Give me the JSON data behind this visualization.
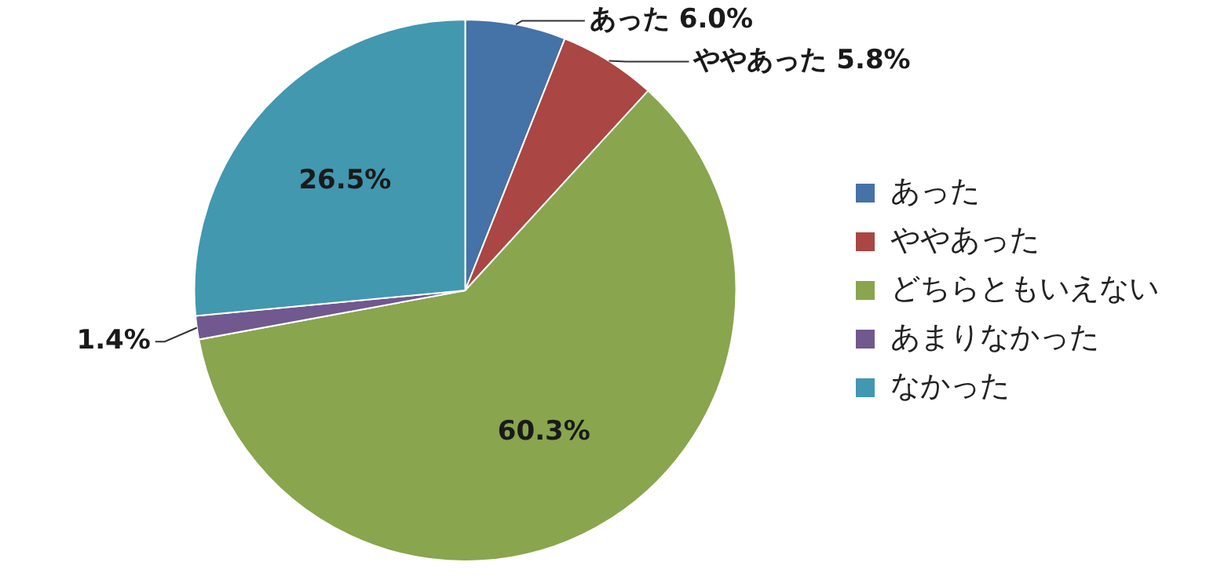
{
  "chart_data": {
    "type": "pie",
    "categories": [
      "あった",
      "ややあった",
      "どちらともいえない",
      "あまりなかった",
      "なかった"
    ],
    "values": [
      6.0,
      5.8,
      60.3,
      1.4,
      26.5
    ],
    "colors": [
      "#4572a7",
      "#aa4643",
      "#89a54e",
      "#71588f",
      "#4198af"
    ],
    "value_labels": [
      "あった 6.0%",
      "ややあった 5.8%",
      "60.3%",
      "1.4%",
      "26.5%"
    ],
    "legend": "right"
  }
}
